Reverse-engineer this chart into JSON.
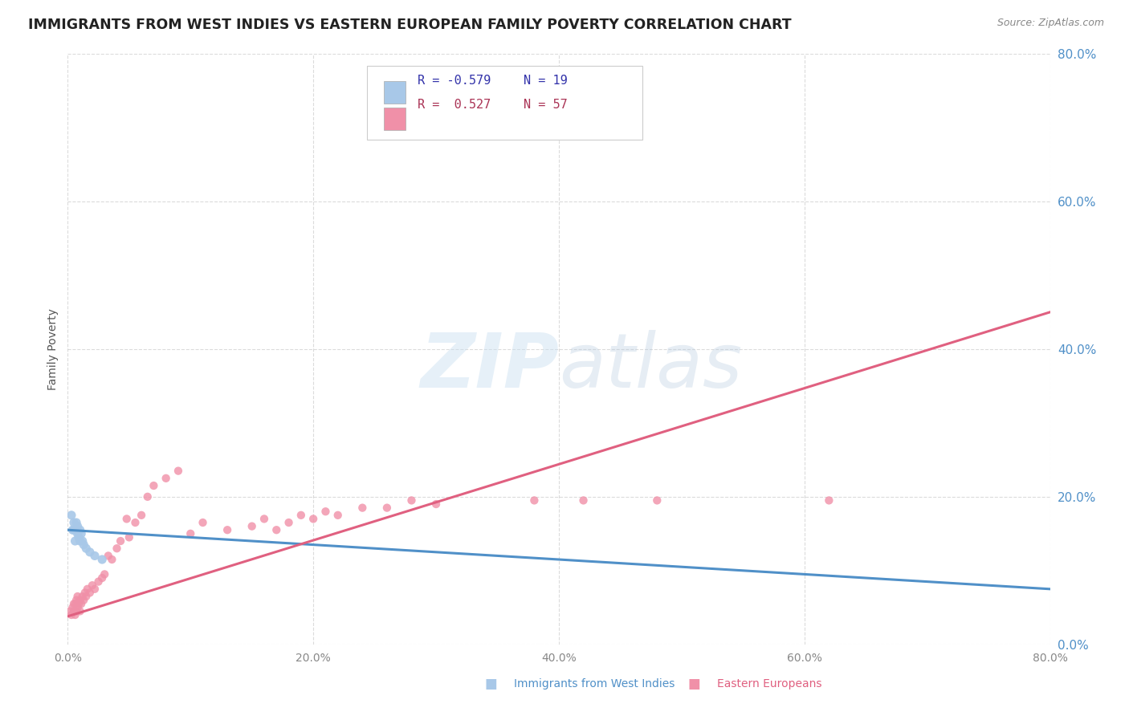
{
  "title": "IMMIGRANTS FROM WEST INDIES VS EASTERN EUROPEAN FAMILY POVERTY CORRELATION CHART",
  "source": "Source: ZipAtlas.com",
  "ylabel": "Family Poverty",
  "watermark_zip": "ZIP",
  "watermark_atlas": "atlas",
  "legend_r1": "R = -0.579",
  "legend_n1": "N = 19",
  "legend_r2": "R =  0.527",
  "legend_n2": "N = 57",
  "legend_names": [
    "Immigrants from West Indies",
    "Eastern Europeans"
  ],
  "blue_color": "#a8c8e8",
  "pink_color": "#f090a8",
  "blue_line_color": "#5090c8",
  "pink_line_color": "#e06080",
  "grid_color": "#cccccc",
  "bg_color": "#ffffff",
  "tick_color_y": "#5090c8",
  "tick_color_x": "#888888",
  "xlim": [
    0.0,
    0.8
  ],
  "ylim": [
    0.0,
    0.8
  ],
  "yticks": [
    0.0,
    0.2,
    0.4,
    0.6,
    0.8
  ],
  "xticks": [
    0.0,
    0.2,
    0.4,
    0.6,
    0.8
  ],
  "blue_scatter_x": [
    0.003,
    0.004,
    0.005,
    0.005,
    0.006,
    0.007,
    0.007,
    0.008,
    0.008,
    0.009,
    0.01,
    0.01,
    0.011,
    0.012,
    0.013,
    0.015,
    0.018,
    0.022,
    0.028
  ],
  "blue_scatter_y": [
    0.175,
    0.155,
    0.155,
    0.165,
    0.14,
    0.155,
    0.165,
    0.15,
    0.16,
    0.145,
    0.14,
    0.155,
    0.15,
    0.14,
    0.135,
    0.13,
    0.125,
    0.12,
    0.115
  ],
  "pink_scatter_x": [
    0.002,
    0.003,
    0.004,
    0.005,
    0.005,
    0.006,
    0.006,
    0.007,
    0.007,
    0.008,
    0.008,
    0.009,
    0.01,
    0.01,
    0.011,
    0.012,
    0.013,
    0.014,
    0.015,
    0.016,
    0.018,
    0.02,
    0.022,
    0.025,
    0.028,
    0.03,
    0.033,
    0.036,
    0.04,
    0.043,
    0.048,
    0.05,
    0.055,
    0.06,
    0.065,
    0.07,
    0.08,
    0.09,
    0.1,
    0.11,
    0.13,
    0.15,
    0.16,
    0.17,
    0.18,
    0.19,
    0.2,
    0.21,
    0.22,
    0.24,
    0.26,
    0.28,
    0.3,
    0.38,
    0.42,
    0.48,
    0.62
  ],
  "pink_scatter_y": [
    0.045,
    0.04,
    0.05,
    0.045,
    0.055,
    0.04,
    0.055,
    0.045,
    0.06,
    0.05,
    0.065,
    0.055,
    0.045,
    0.06,
    0.055,
    0.065,
    0.06,
    0.07,
    0.065,
    0.075,
    0.07,
    0.08,
    0.075,
    0.085,
    0.09,
    0.095,
    0.12,
    0.115,
    0.13,
    0.14,
    0.17,
    0.145,
    0.165,
    0.175,
    0.2,
    0.215,
    0.225,
    0.235,
    0.15,
    0.165,
    0.155,
    0.16,
    0.17,
    0.155,
    0.165,
    0.175,
    0.17,
    0.18,
    0.175,
    0.185,
    0.185,
    0.195,
    0.19,
    0.195,
    0.195,
    0.195,
    0.195
  ],
  "blue_line_x0": 0.0,
  "blue_line_x1": 0.8,
  "blue_line_y0": 0.155,
  "blue_line_y1": 0.075,
  "pink_line_x0": 0.0,
  "pink_line_x1": 0.8,
  "pink_line_y0": 0.038,
  "pink_line_y1": 0.45
}
